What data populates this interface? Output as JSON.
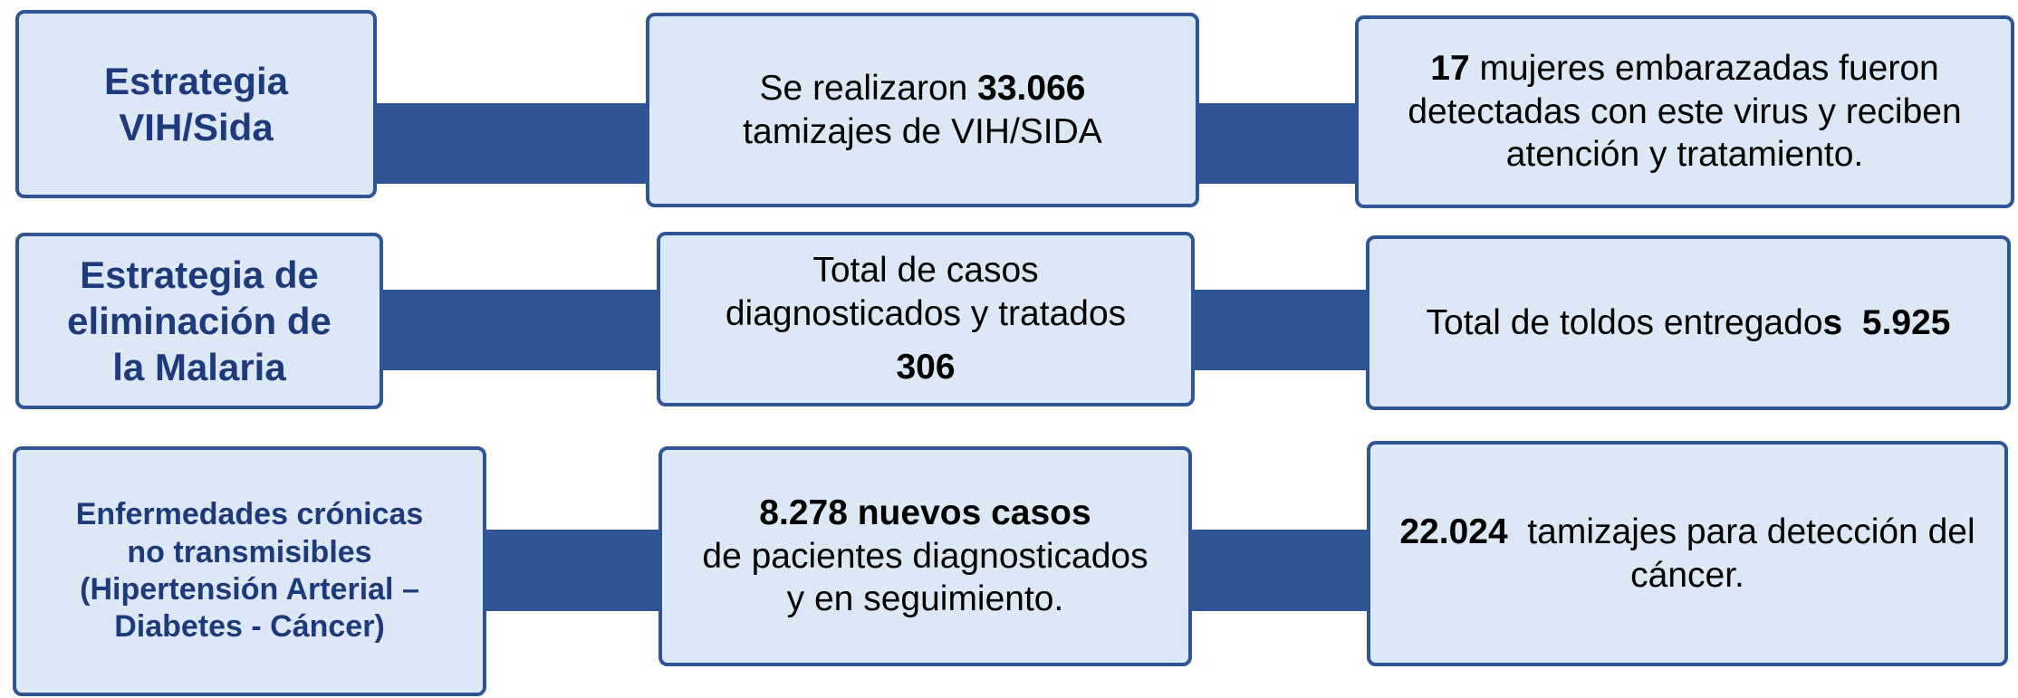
{
  "rows": [
    {
      "title": [
        "Estrategia",
        "VIH/Sida"
      ],
      "boxes": [
        {
          "lines": [
            [
              {
                "text": "Se realizaron ",
                "bold": false
              },
              {
                "text": "33.066",
                "bold": true
              }
            ],
            [
              {
                "text": "tamizajes de VIH/SIDA",
                "bold": false
              }
            ]
          ]
        },
        {
          "lines": [
            [
              {
                "text": "17",
                "bold": true
              },
              {
                "text": " mujeres embarazadas fueron",
                "bold": false
              }
            ],
            [
              {
                "text": "detectadas con este virus y reciben",
                "bold": false
              }
            ],
            [
              {
                "text": "atención y tratamiento.",
                "bold": false
              }
            ]
          ]
        }
      ]
    },
    {
      "title": [
        "Estrategia de",
        "eliminación de",
        "la Malaria"
      ],
      "boxes": [
        {
          "lines": [
            [
              {
                "text": "Total de casos",
                "bold": false
              }
            ],
            [
              {
                "text": "diagnosticados y tratados",
                "bold": false
              }
            ],
            [
              {
                "text": "306",
                "bold": true
              }
            ]
          ]
        },
        {
          "lines": [
            [
              {
                "text": "Total de toldos entregado",
                "bold": false
              },
              {
                "text": "s  5.925",
                "bold": true
              }
            ]
          ]
        }
      ]
    },
    {
      "title": [
        "Enfermedades crónicas",
        "no transmisibles",
        "(Hipertensión Arterial –",
        "Diabetes - Cáncer)"
      ],
      "boxes": [
        {
          "lines": [
            [
              {
                "text": "8.278 nuevos casos",
                "bold": true
              }
            ],
            [
              {
                "text": "de pacientes diagnosticados",
                "bold": false
              }
            ],
            [
              {
                "text": "y en seguimiento.",
                "bold": false
              }
            ]
          ]
        },
        {
          "lines": [
            [
              {
                "text": "22.024",
                "bold": true
              },
              {
                "text": "  tamizajes para detección del",
                "bold": false
              }
            ],
            [
              {
                "text": "cáncer.",
                "bold": false
              }
            ]
          ]
        }
      ]
    }
  ]
}
